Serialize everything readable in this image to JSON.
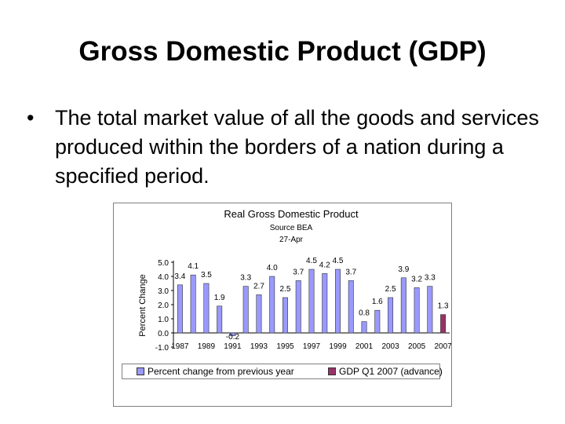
{
  "slide": {
    "title": "Gross Domestic Product (GDP)",
    "bullet": "The total market value of all the goods and services produced within the borders of a nation during a specified period."
  },
  "chart_data": {
    "type": "bar",
    "title": "Real Gross Domestic Product",
    "subtitle": [
      "Source BEA",
      "27-Apr"
    ],
    "ylabel": "Percent Change",
    "xlabel": "",
    "ylim": [
      -1.0,
      5.0
    ],
    "yticks": [
      "5.0",
      "4.0",
      "3.0",
      "2.0",
      "1.0",
      "0.0",
      "-1.0"
    ],
    "xtick_labels": [
      "1987",
      "1989",
      "1991",
      "1993",
      "1995",
      "1997",
      "1999",
      "2001",
      "2003",
      "2005",
      "2007"
    ],
    "grid": false,
    "legend_position": "bottom",
    "series": [
      {
        "name": "Percent change from previous year",
        "color": "#9999ff",
        "x": [
          1987,
          1988,
          1989,
          1990,
          1991,
          1992,
          1993,
          1994,
          1995,
          1996,
          1997,
          1998,
          1999,
          2000,
          2001,
          2002,
          2003,
          2004,
          2005,
          2006
        ],
        "values": [
          3.4,
          4.1,
          3.5,
          1.9,
          -0.2,
          3.3,
          2.7,
          4.0,
          2.5,
          3.7,
          4.5,
          4.2,
          4.5,
          3.7,
          0.8,
          1.6,
          2.5,
          3.9,
          3.2,
          3.3
        ],
        "labels": [
          "3.4",
          "4.1",
          "3.5",
          "1.9",
          "-0.2",
          "3.3",
          "2.7",
          "4.0",
          "2.5",
          "3.7",
          "4.5",
          "4.2",
          "4.5",
          "3.7",
          "0.8",
          "1.6",
          "2.5",
          "3.9",
          "3.2",
          "3.3"
        ]
      },
      {
        "name": "GDP Q1 2007 (advance)",
        "color": "#993366",
        "x": [
          2007
        ],
        "values": [
          1.3
        ],
        "labels": [
          "1.3"
        ]
      }
    ]
  }
}
